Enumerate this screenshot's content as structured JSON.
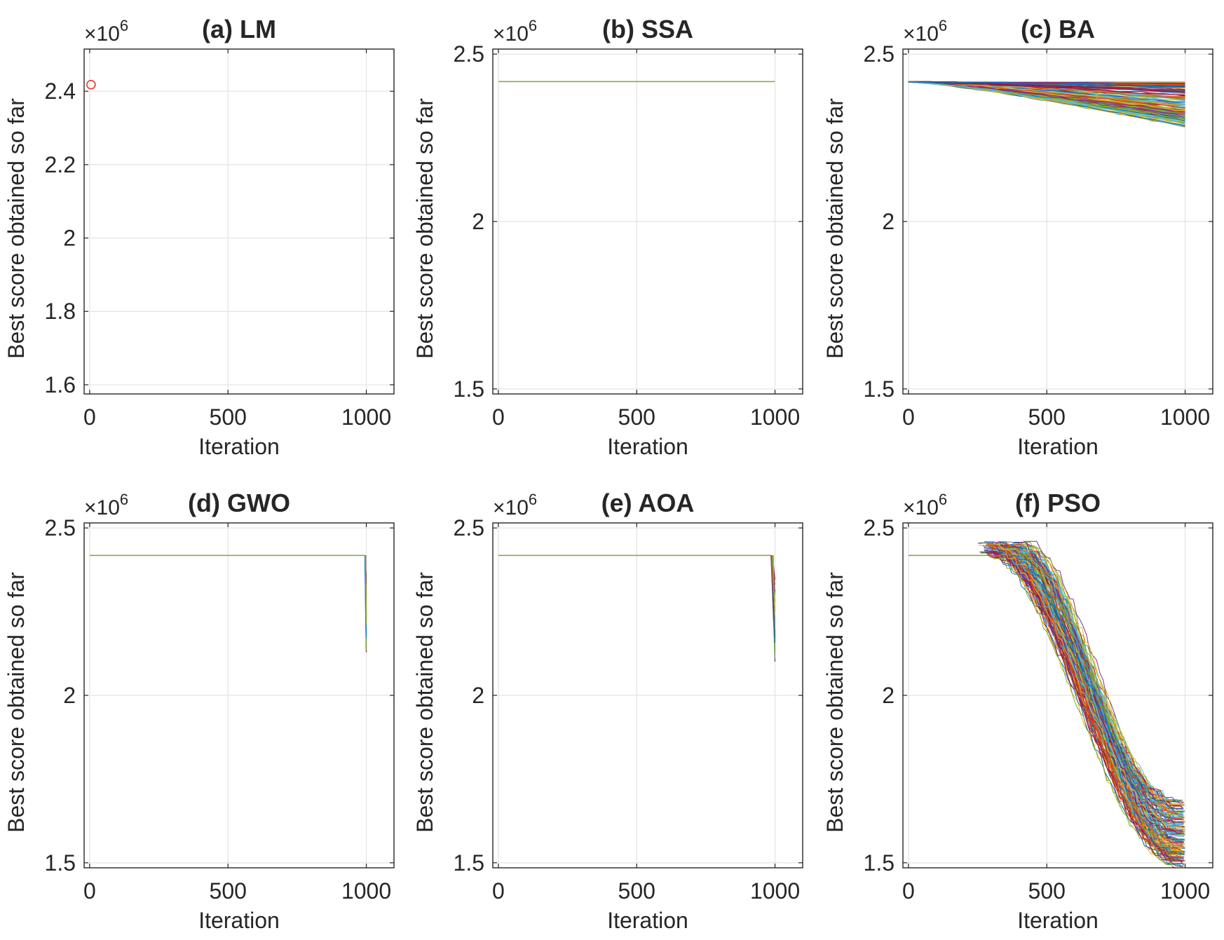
{
  "figure": {
    "layout": "2 rows x 3 columns"
  },
  "chart_data": [
    {
      "id": "a",
      "type": "line",
      "title": "(a) LM",
      "xlabel": "Iteration",
      "ylabel": "Best score obtained so far",
      "exponent_label": "×10",
      "exponent_power": "6",
      "xlim": [
        -20,
        1100
      ],
      "ylim": [
        1.575,
        2.515
      ],
      "xticks": [
        0,
        500,
        1000
      ],
      "xtick_labels": [
        "0",
        "500",
        "1000"
      ],
      "yticks": [
        1.6,
        1.8,
        2.0,
        2.2,
        2.4
      ],
      "ytick_labels": [
        "1.6",
        "1.8",
        "2",
        "2.2",
        "2.4"
      ],
      "grid": true,
      "series": [
        {
          "name": "LM",
          "kind": "marker",
          "marker": "circle",
          "color": "#e8362f",
          "x": [
            5
          ],
          "y": [
            2.418
          ]
        }
      ]
    },
    {
      "id": "b",
      "type": "line",
      "title": "(b) SSA",
      "xlabel": "Iteration",
      "ylabel": "Best score obtained so far",
      "exponent_label": "×10",
      "exponent_power": "6",
      "xlim": [
        -20,
        1100
      ],
      "ylim": [
        1.485,
        2.515
      ],
      "xticks": [
        0,
        500,
        1000
      ],
      "xtick_labels": [
        "0",
        "500",
        "1000"
      ],
      "yticks": [
        1.5,
        2.0,
        2.5
      ],
      "ytick_labels": [
        "1.5",
        "2",
        "2.5"
      ],
      "grid": true,
      "series": [
        {
          "name": "SSA runs",
          "kind": "flat",
          "color": "#77ac30",
          "start": 2.418,
          "final_min": 2.418,
          "final_max": 2.418
        }
      ]
    },
    {
      "id": "c",
      "type": "line",
      "title": "(c) BA",
      "xlabel": "Iteration",
      "ylabel": "Best score obtained so far",
      "exponent_label": "×10",
      "exponent_power": "6",
      "xlim": [
        -20,
        1100
      ],
      "ylim": [
        1.485,
        2.515
      ],
      "xticks": [
        0,
        500,
        1000
      ],
      "xtick_labels": [
        "0",
        "500",
        "1000"
      ],
      "yticks": [
        1.5,
        2.0,
        2.5
      ],
      "ytick_labels": [
        "1.5",
        "2",
        "2.5"
      ],
      "grid": true,
      "series": [
        {
          "name": "BA runs",
          "kind": "bundle_gradual",
          "runs": 120,
          "start": 2.418,
          "final_min": 2.28,
          "final_max": 2.418
        }
      ]
    },
    {
      "id": "d",
      "type": "line",
      "title": "(d) GWO",
      "xlabel": "Iteration",
      "ylabel": "Best score obtained so far",
      "exponent_label": "×10",
      "exponent_power": "6",
      "xlim": [
        -20,
        1100
      ],
      "ylim": [
        1.485,
        2.515
      ],
      "xticks": [
        0,
        500,
        1000
      ],
      "xtick_labels": [
        "0",
        "500",
        "1000"
      ],
      "yticks": [
        1.5,
        2.0,
        2.5
      ],
      "ytick_labels": [
        "1.5",
        "2",
        "2.5"
      ],
      "grid": true,
      "series": [
        {
          "name": "GWO runs",
          "kind": "bundle_late_drop",
          "runs": 40,
          "start": 2.418,
          "drop_start": 995,
          "final_min": 2.12,
          "final_max": 2.35
        }
      ]
    },
    {
      "id": "e",
      "type": "line",
      "title": "(e) AOA",
      "xlabel": "Iteration",
      "ylabel": "Best score obtained so far",
      "exponent_label": "×10",
      "exponent_power": "6",
      "xlim": [
        -20,
        1100
      ],
      "ylim": [
        1.485,
        2.515
      ],
      "xticks": [
        0,
        500,
        1000
      ],
      "xtick_labels": [
        "0",
        "500",
        "1000"
      ],
      "yticks": [
        1.5,
        2.0,
        2.5
      ],
      "ytick_labels": [
        "1.5",
        "2",
        "2.5"
      ],
      "grid": true,
      "series": [
        {
          "name": "AOA runs",
          "kind": "bundle_late_drop",
          "runs": 40,
          "start": 2.418,
          "drop_start": 985,
          "final_min": 2.1,
          "final_max": 2.35
        }
      ]
    },
    {
      "id": "f",
      "type": "line",
      "title": "(f) PSO",
      "xlabel": "Iteration",
      "ylabel": "Best score obtained so far",
      "exponent_label": "×10",
      "exponent_power": "6",
      "xlim": [
        -20,
        1100
      ],
      "ylim": [
        1.485,
        2.515
      ],
      "xticks": [
        0,
        500,
        1000
      ],
      "xtick_labels": [
        "0",
        "500",
        "1000"
      ],
      "yticks": [
        1.5,
        2.0,
        2.5
      ],
      "ytick_labels": [
        "1.5",
        "2",
        "2.5"
      ],
      "grid": true,
      "series": [
        {
          "name": "PSO runs",
          "kind": "bundle_pso",
          "runs": 150,
          "start": 2.418,
          "drop_start_min": 250,
          "drop_start_max": 420,
          "final_min": 1.49,
          "final_max": 1.69
        }
      ]
    }
  ],
  "palette": [
    "#0072bd",
    "#d95319",
    "#edb120",
    "#7e2f8e",
    "#77ac30",
    "#4dbeee",
    "#a2142f",
    "#e8362f"
  ]
}
